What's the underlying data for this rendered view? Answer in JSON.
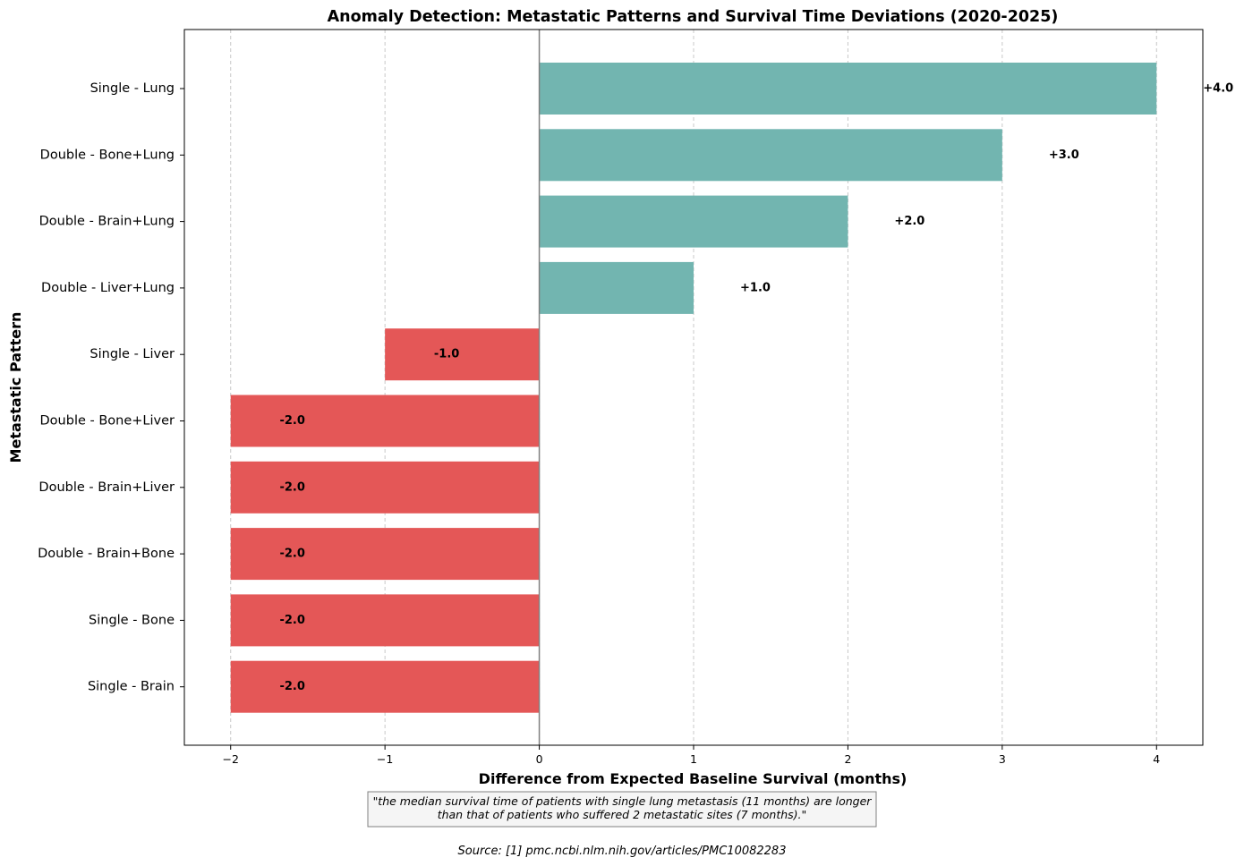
{
  "chart_data": {
    "type": "bar",
    "orientation": "horizontal",
    "title": "Anomaly Detection: Metastatic Patterns and Survival Time Deviations (2020-2025)",
    "xlabel": "Difference from Expected Baseline Survival (months)",
    "ylabel": "Metastatic Pattern",
    "categories": [
      "Single - Lung",
      "Double - Bone+Lung",
      "Double - Brain+Lung",
      "Double - Liver+Lung",
      "Single - Liver",
      "Double - Bone+Liver",
      "Double - Brain+Liver",
      "Double - Brain+Bone",
      "Single - Bone",
      "Single - Brain"
    ],
    "values": [
      4.0,
      3.0,
      2.0,
      1.0,
      -1.0,
      -2.0,
      -2.0,
      -2.0,
      -2.0,
      -2.0
    ],
    "value_labels": [
      "+4.0",
      "+3.0",
      "+2.0",
      "+1.0",
      "-1.0",
      "-2.0",
      "-2.0",
      "-2.0",
      "-2.0",
      "-2.0"
    ],
    "xlim": [
      -2.3,
      4.3
    ],
    "xticks": [
      -2,
      -1,
      0,
      1,
      2,
      3,
      4
    ],
    "xtick_labels": [
      "−2",
      "−1",
      "0",
      "1",
      "2",
      "3",
      "4"
    ],
    "grid": "x-dashed",
    "colors": {
      "positive": "#72b5b0",
      "negative": "#e45757",
      "zero_line": "#808080",
      "grid": "#c8c8c8"
    }
  },
  "annotation": {
    "quote_line1": "\"the median survival time of patients with single lung metastasis (11 months) are longer",
    "quote_line2": "than that of patients who suffered 2 metastatic sites (7 months).\"",
    "source": "Source: [1] pmc.ncbi.nlm.nih.gov/articles/PMC10082283"
  }
}
